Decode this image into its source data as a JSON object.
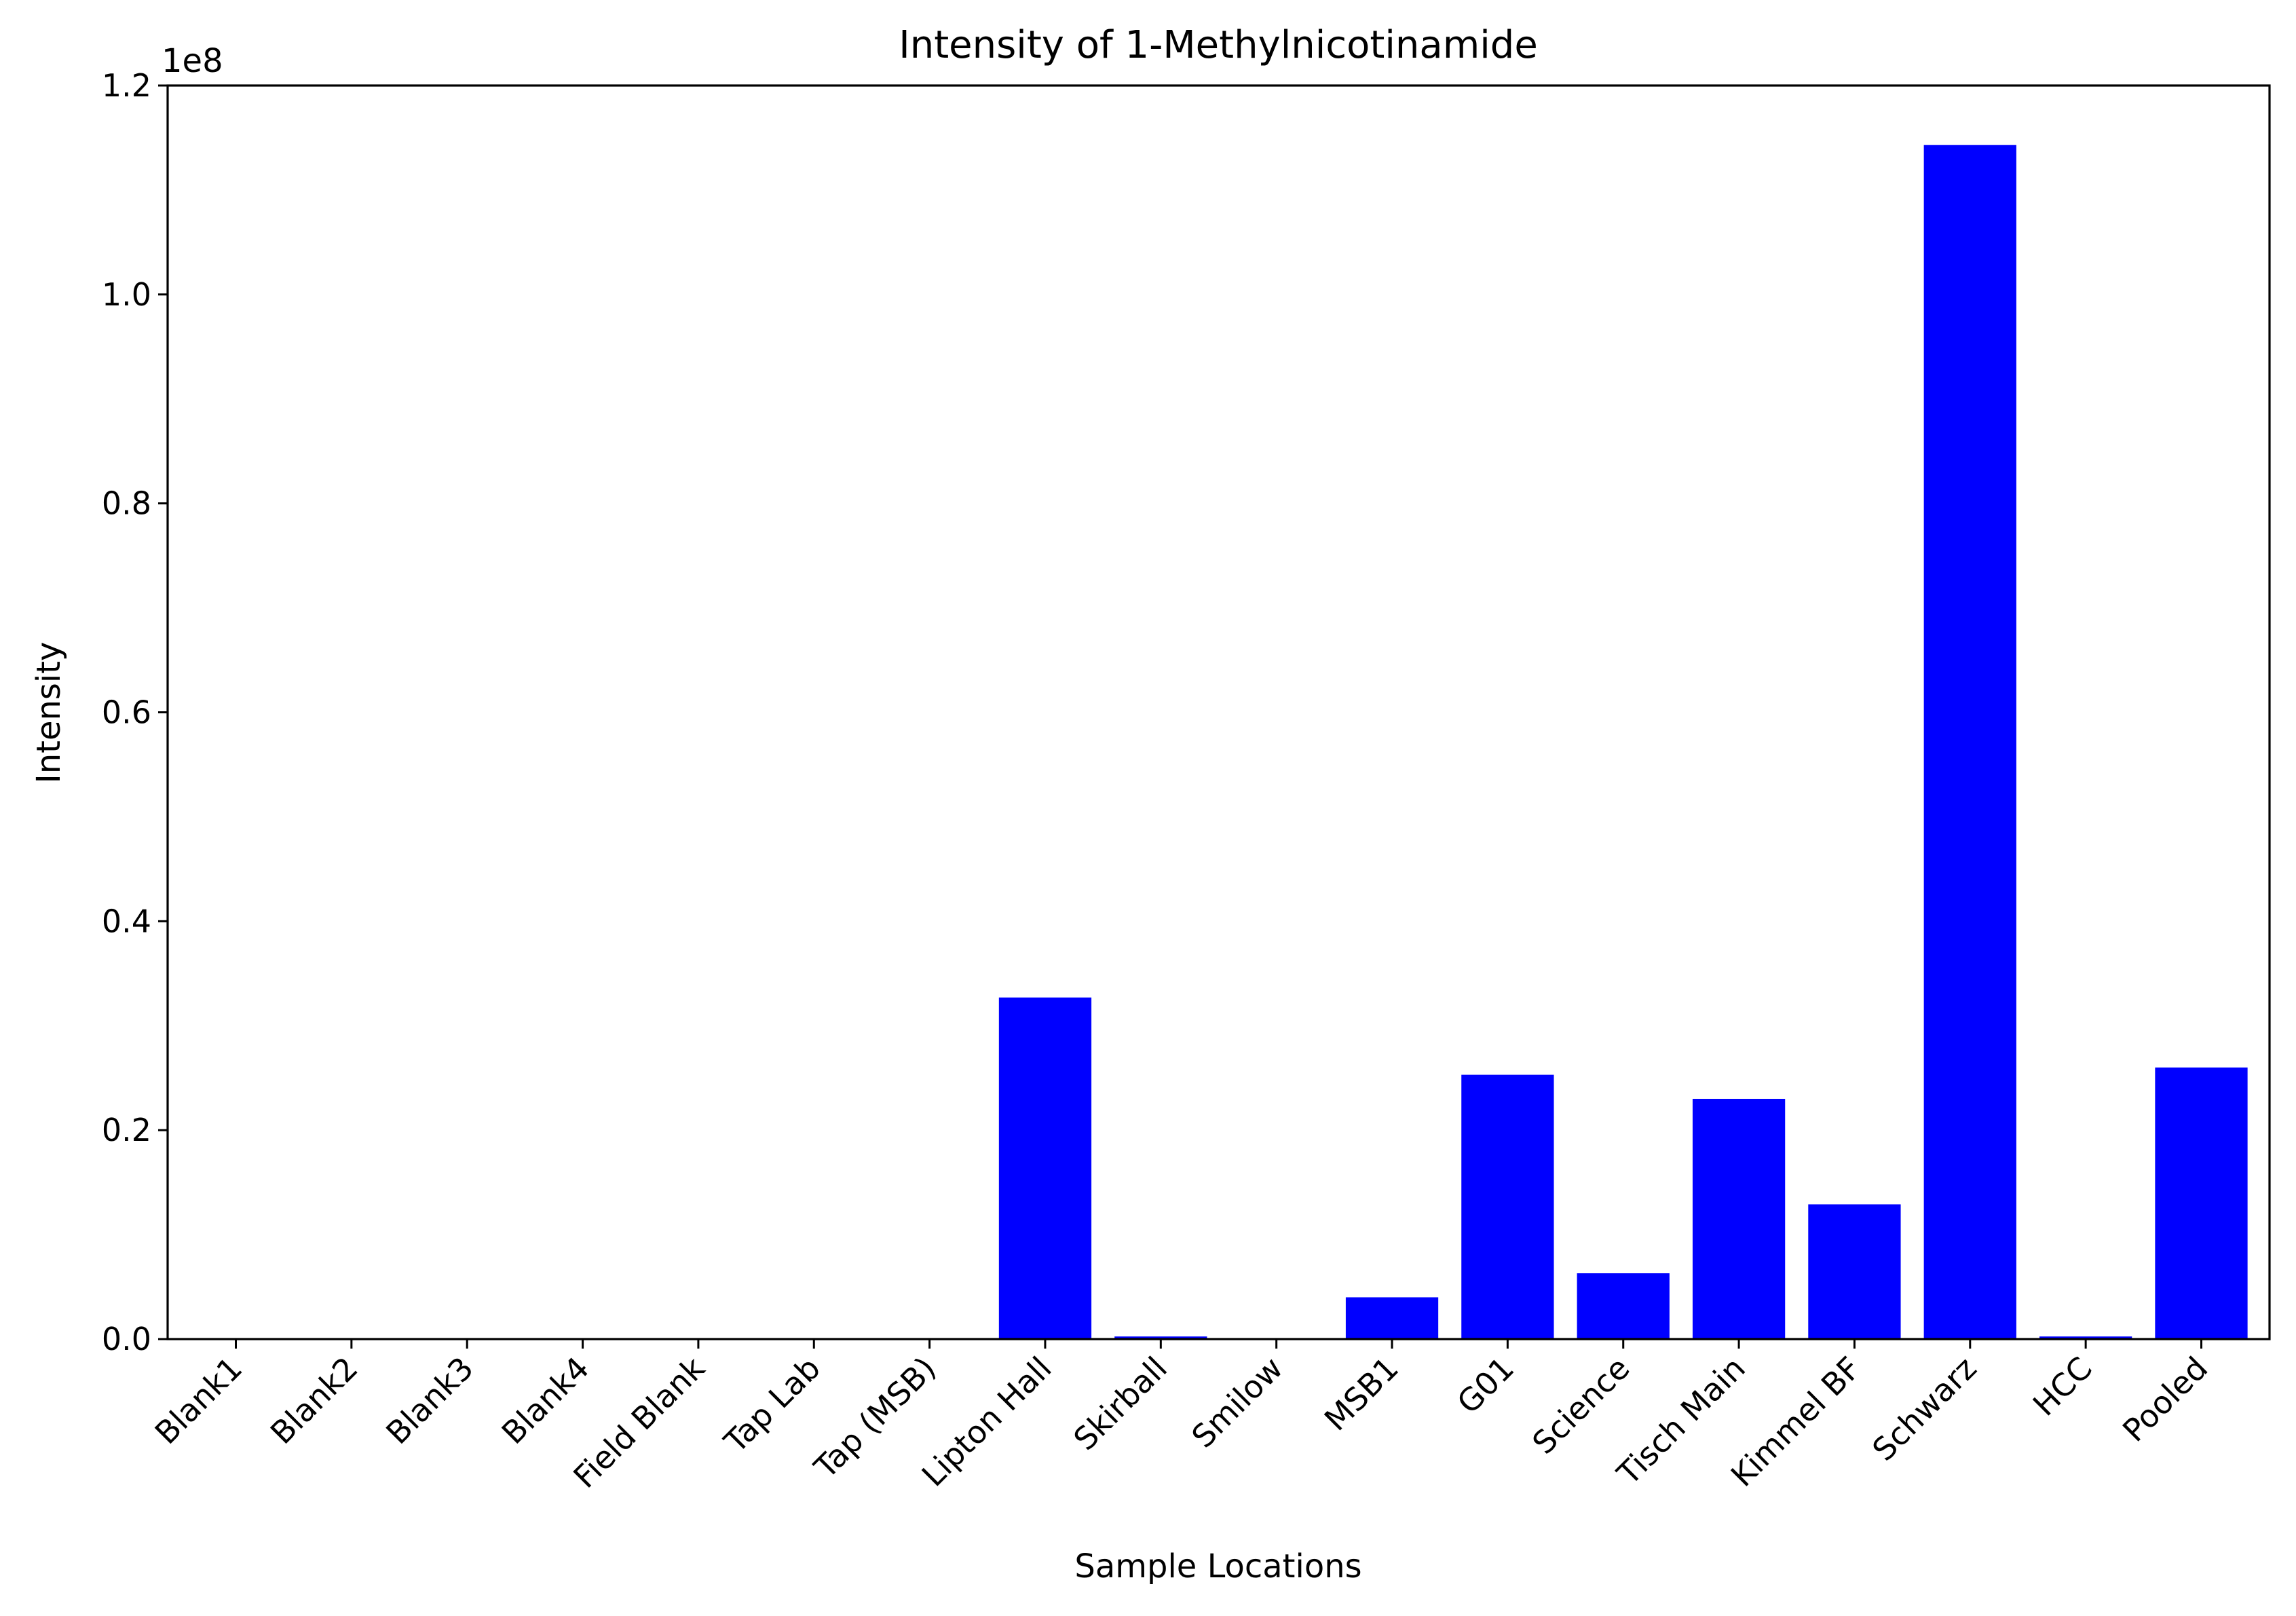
{
  "chart_data": {
    "type": "bar",
    "title": "Intensity of 1-Methylnicotinamide",
    "xlabel": "Sample Locations",
    "ylabel": "Intensity",
    "y_offset_label": "1e8",
    "categories": [
      "Blank1",
      "Blank2",
      "Blank3",
      "Blank4",
      "Field Blank",
      "Tap Lab",
      "Tap (MSB)",
      "Lipton Hall",
      "Skirball",
      "Smilow",
      "MSB1",
      "G01",
      "Science",
      "Tisch Main",
      "Kimmel BF",
      "Schwarz",
      "HCC",
      "Pooled"
    ],
    "values": [
      0,
      0,
      0,
      0,
      0,
      0,
      0,
      32700000,
      250000,
      0,
      4000000,
      25300000,
      6300000,
      23000000,
      12900000,
      114300000,
      250000,
      26000000
    ],
    "ylim": [
      0,
      120000000
    ],
    "yticks": [
      0,
      20000000,
      40000000,
      60000000,
      80000000,
      100000000,
      120000000
    ],
    "ytick_labels": [
      "0.0",
      "0.2",
      "0.4",
      "0.6",
      "0.8",
      "1.0",
      "1.2"
    ],
    "bar_color": "#0000ff",
    "grid": false,
    "legend": "none"
  }
}
